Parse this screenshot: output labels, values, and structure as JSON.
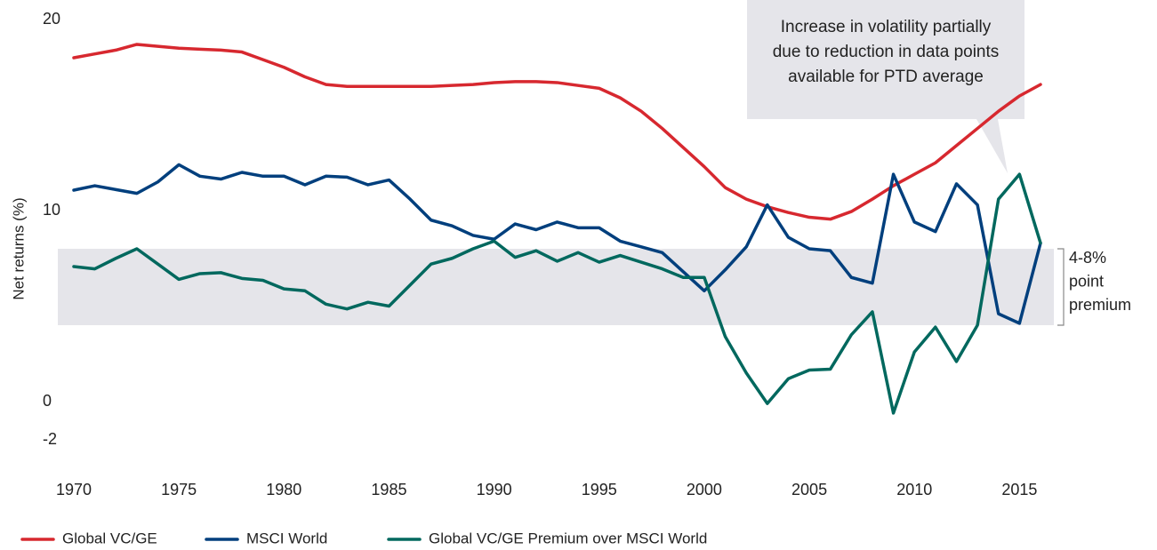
{
  "chart_data": {
    "type": "line",
    "ylabel": "Net returns (%)",
    "x": [
      1970,
      1971,
      1972,
      1973,
      1974,
      1975,
      1976,
      1977,
      1978,
      1979,
      1980,
      1981,
      1982,
      1983,
      1984,
      1985,
      1986,
      1987,
      1988,
      1989,
      1990,
      1991,
      1992,
      1993,
      1994,
      1995,
      1996,
      1997,
      1998,
      1999,
      2000,
      2001,
      2002,
      2003,
      2004,
      2005,
      2006,
      2007,
      2008,
      2009,
      2010,
      2011,
      2012,
      2013,
      2014,
      2015,
      2016
    ],
    "xlim": [
      1970,
      2016
    ],
    "xticks": [
      1970,
      1975,
      1980,
      1985,
      1990,
      1995,
      2000,
      2005,
      2010,
      2015
    ],
    "ylim": [
      -2.5,
      20
    ],
    "yticks": [
      -2,
      0,
      10,
      20
    ],
    "series": [
      {
        "name": "Global VC/GE",
        "color": "#d7282f",
        "values": [
          18.0,
          18.2,
          18.4,
          18.7,
          18.6,
          18.5,
          18.45,
          18.4,
          18.3,
          17.9,
          17.5,
          17.0,
          16.6,
          16.5,
          16.5,
          16.5,
          16.5,
          16.5,
          16.55,
          16.6,
          16.7,
          16.75,
          16.75,
          16.7,
          16.55,
          16.4,
          15.9,
          15.2,
          14.3,
          13.3,
          12.3,
          11.2,
          10.6,
          10.2,
          9.9,
          9.65,
          9.55,
          9.95,
          10.6,
          11.3,
          11.9,
          12.5,
          13.4,
          14.3,
          15.2,
          16.0,
          16.6
        ]
      },
      {
        "name": "MSCI World",
        "color": "#003f7d",
        "values": [
          11.07,
          11.3,
          11.1,
          10.9,
          11.5,
          12.4,
          11.8,
          11.65,
          12.0,
          11.8,
          11.8,
          11.35,
          11.8,
          11.75,
          11.35,
          11.6,
          10.6,
          9.5,
          9.2,
          8.7,
          8.5,
          9.3,
          9.0,
          9.4,
          9.1,
          9.1,
          8.4,
          8.1,
          7.8,
          6.8,
          5.8,
          6.9,
          8.1,
          10.3,
          8.6,
          8.0,
          7.9,
          6.5,
          6.2,
          11.9,
          9.4,
          8.9,
          11.4,
          10.3,
          4.6,
          4.1,
          8.3
        ]
      },
      {
        "name": "Global VC/GE Premium over MSCI World",
        "color": "#00685e",
        "values": [
          7.07,
          6.95,
          7.5,
          8.0,
          7.2,
          6.4,
          6.7,
          6.75,
          6.45,
          6.35,
          5.9,
          5.8,
          5.1,
          4.85,
          5.2,
          5.0,
          6.1,
          7.2,
          7.5,
          8.0,
          8.4,
          7.55,
          7.9,
          7.35,
          7.8,
          7.3,
          7.65,
          7.3,
          6.95,
          6.5,
          6.5,
          3.4,
          1.5,
          -0.1,
          1.2,
          1.65,
          1.7,
          3.5,
          4.7,
          -0.6,
          2.6,
          3.9,
          2.1,
          4.0,
          10.6,
          11.9,
          8.3
        ]
      }
    ],
    "band": [
      4,
      8
    ],
    "band_color": "#e5e5ea",
    "band_label": [
      "4-8%",
      "point",
      "premium"
    ],
    "annotation": [
      "Increase in volatility partially",
      "due to reduction in data points",
      "available for PTD average"
    ]
  }
}
